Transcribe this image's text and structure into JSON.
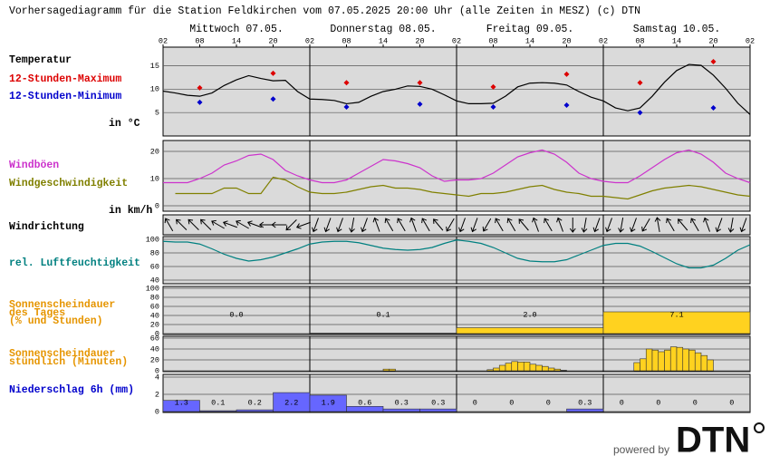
{
  "header": {
    "title": "Vorhersagediagramm für die Station Feldkirchen vom 07.05.2025 20:00 Uhr (alle Zeiten in MESZ)   (c) DTN",
    "days": [
      "Mittwoch 07.05.",
      "Donnerstag 08.05.",
      "Freitag 09.05.",
      "Samstag 10.05."
    ],
    "hour_labels": [
      "02",
      "08",
      "14",
      "20",
      "02",
      "08",
      "14",
      "20",
      "02",
      "08",
      "14",
      "20",
      "02",
      "08",
      "14",
      "20",
      "02"
    ]
  },
  "chart_data": [
    {
      "type": "line",
      "label": "Temperatur",
      "unit_label": "in °C",
      "ylim": [
        0,
        19
      ],
      "yticks": [
        5,
        10,
        15
      ],
      "series": [
        {
          "color": "#000000",
          "values": [
            9.6,
            9.2,
            8.7,
            8.5,
            9.2,
            10.8,
            12.0,
            12.9,
            12.3,
            11.8,
            11.9,
            9.5,
            7.9,
            7.8,
            7.6,
            6.9,
            7.2,
            8.5,
            9.5,
            10.0,
            10.7,
            10.6,
            10.0,
            8.8,
            7.5,
            6.9,
            6.9,
            7.0,
            8.5,
            10.5,
            11.3,
            11.4,
            11.3,
            10.9,
            9.5,
            8.3,
            7.5,
            6.0,
            5.4,
            6.0,
            8.5,
            11.5,
            14.0,
            15.3,
            15.1,
            13.0,
            10.2,
            7.0,
            4.6
          ]
        },
        {
          "name": "12-Stunden-Maximum",
          "color": "#dd0000",
          "marker": "diamond",
          "values": [
            null,
            10.3,
            null,
            13.4,
            null,
            11.4,
            null,
            11.4,
            null,
            10.5,
            null,
            13.2,
            null,
            11.4,
            null,
            15.9,
            null
          ]
        },
        {
          "name": "12-Stunden-Minimum",
          "color": "#0000cc",
          "marker": "diamond",
          "values": [
            null,
            7.2,
            null,
            7.9,
            null,
            6.2,
            null,
            6.8,
            null,
            6.2,
            null,
            6.6,
            null,
            5.0,
            null,
            6.0,
            null
          ]
        }
      ]
    },
    {
      "type": "line",
      "unit_label": "in km/h",
      "ylim": [
        -2,
        24
      ],
      "yticks": [
        0,
        10,
        20
      ],
      "series": [
        {
          "name": "Windböen",
          "color": "#cc33cc",
          "values": [
            8.5,
            8.5,
            8.5,
            10,
            12,
            15,
            16.5,
            18.5,
            19,
            17,
            13,
            11,
            9.5,
            8.5,
            8.5,
            9.5,
            12,
            14.5,
            17,
            16.5,
            15.5,
            14,
            11,
            9,
            9.5,
            9.5,
            10,
            12,
            15,
            18,
            19.5,
            20.5,
            19,
            16,
            12,
            10,
            9,
            8.5,
            8.5,
            11,
            14,
            17,
            19.5,
            20.5,
            19,
            16,
            12,
            10,
            8.5
          ]
        },
        {
          "name": "Windgeschwindigkeit",
          "color": "#808000",
          "values": [
            null,
            4.5,
            4.5,
            4.5,
            4.5,
            6.5,
            6.5,
            4.5,
            4.5,
            10.5,
            9.5,
            7,
            5,
            4.5,
            4.5,
            5,
            6,
            7,
            7.5,
            6.5,
            6.5,
            6,
            5,
            4.5,
            4,
            3.5,
            4.5,
            4.5,
            5,
            6,
            7,
            7.5,
            6,
            5,
            4.5,
            3.5,
            3.5,
            3,
            2.5,
            4,
            5.5,
            6.5,
            7,
            7.5,
            7,
            6,
            5,
            4,
            3.5
          ]
        }
      ]
    },
    {
      "type": "arrows",
      "label": "Windrichtung",
      "values": [
        330,
        315,
        315,
        315,
        300,
        290,
        300,
        290,
        270,
        270,
        225,
        250,
        200,
        200,
        200,
        190,
        200,
        340,
        330,
        330,
        340,
        330,
        320,
        210,
        200,
        200,
        210,
        330,
        330,
        320,
        340,
        330,
        340,
        180,
        190,
        200,
        200,
        190,
        200,
        210,
        350,
        330,
        320,
        330,
        340,
        200,
        190,
        200
      ]
    },
    {
      "type": "line",
      "ylim": [
        40,
        100
      ],
      "yticks": [
        40,
        60,
        80,
        100
      ],
      "series": [
        {
          "name": "rel. Luftfeuchtigkeit",
          "color": "#008080",
          "values": [
            97,
            96,
            96,
            93,
            86,
            78,
            72,
            68,
            70,
            74,
            80,
            86,
            93,
            96,
            97,
            97,
            95,
            91,
            87,
            85,
            84,
            85,
            88,
            94,
            99,
            97,
            94,
            88,
            80,
            72,
            68,
            67,
            67,
            70,
            77,
            84,
            91,
            94,
            94,
            90,
            82,
            73,
            64,
            58,
            58,
            62,
            72,
            84,
            92
          ]
        }
      ]
    },
    {
      "type": "bar",
      "label": [
        "Sonnenscheindauer",
        "des Tages",
        "(% und Stunden)"
      ],
      "label_color": "#e69500",
      "color": "#ffd21f",
      "ylim": [
        0,
        100
      ],
      "yticks": [
        0,
        20,
        40,
        60,
        80,
        100
      ],
      "values": [
        0,
        1,
        13,
        48
      ],
      "hours": [
        0,
        0.1,
        2,
        7.1
      ],
      "value_labels": [
        "0.0",
        "0.1",
        "2.0",
        "7.1"
      ]
    },
    {
      "type": "bar",
      "label": [
        "Sonnenscheindauer",
        "stündlich (Minuten)"
      ],
      "label_color": "#e69500",
      "color": "#ffd21f",
      "ylim": [
        0,
        60
      ],
      "yticks": [
        0,
        20,
        40,
        60
      ],
      "values": [
        0,
        0,
        0,
        0,
        0,
        0,
        0,
        0,
        0,
        0,
        0,
        0,
        0,
        0,
        0,
        0,
        0,
        0,
        0,
        0,
        0,
        0,
        0,
        0,
        0,
        0,
        0,
        0,
        0,
        0,
        0,
        0,
        0,
        0,
        0,
        0,
        3,
        3,
        0,
        0,
        0,
        0,
        0,
        0,
        0,
        0,
        0,
        0,
        0,
        0,
        0,
        0,
        0,
        2,
        5,
        10,
        14,
        17,
        16,
        16,
        12,
        10,
        8,
        5,
        3,
        1,
        0,
        0,
        0,
        0,
        0,
        0,
        0,
        0,
        0,
        0,
        0,
        15,
        22,
        40,
        38,
        35,
        38,
        44,
        43,
        40,
        38,
        33,
        28,
        20,
        0,
        0,
        0,
        0,
        0,
        0
      ]
    },
    {
      "type": "bar",
      "label": [
        "Niederschlag 6h (mm)"
      ],
      "label_color": "#0000cc",
      "color": "#6666ff",
      "show_values": true,
      "ylim": [
        0,
        4
      ],
      "yticks": [
        0,
        2,
        4
      ],
      "values": [
        1.3,
        0.1,
        0.2,
        2.2,
        1.9,
        0.6,
        0.3,
        0.3,
        0,
        0,
        0,
        0.3,
        0,
        0,
        0,
        0
      ]
    }
  ],
  "footer": {
    "powered_by": "powered by",
    "logo": "DTN"
  }
}
